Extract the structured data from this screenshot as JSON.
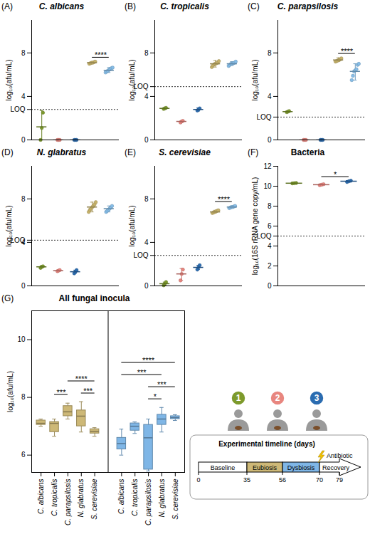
{
  "chart_data": [
    {
      "type": "scatter",
      "panel": "(A)",
      "title": "C. albicans",
      "ylabel": "log₁₀(afu/mL)",
      "ylim": [
        0,
        11
      ],
      "yticks": [
        0,
        4,
        8,
        {
          "value": 2.8,
          "label": "LOQ"
        }
      ],
      "loq": 2.8,
      "tick_labels": "y",
      "series": [
        {
          "color": "#7d9a2c",
          "values": [
            0,
            1.1,
            2.5
          ],
          "mean": 1.2,
          "error": [
            0,
            2.7
          ]
        },
        {
          "color": "#e8867f",
          "values": [
            0,
            0,
            0
          ],
          "mean": 0,
          "error": [
            0,
            0
          ]
        },
        {
          "color": "#2b6cb0",
          "values": [
            0,
            0,
            0
          ],
          "mean": 0,
          "error": [
            0,
            0
          ]
        },
        {
          "color": "#c7b36b",
          "values": [
            7.0,
            7.05,
            7.1,
            7.1,
            7.15,
            7.2
          ],
          "mean": 7.1,
          "error": [
            7.0,
            7.2
          ]
        },
        {
          "color": "#86bde8",
          "values": [
            6.2,
            6.3,
            6.35,
            6.45,
            6.5,
            6.6,
            6.65
          ],
          "mean": 6.4,
          "error": [
            6.2,
            6.65
          ]
        }
      ],
      "significance": [
        {
          "between": [
            3,
            4
          ],
          "label": "****"
        }
      ]
    },
    {
      "type": "scatter",
      "panel": "(B)",
      "title": "C. tropicalis",
      "ylabel": "log₁₀(afu/mL)",
      "ylim": [
        0,
        11
      ],
      "yticks": [
        0,
        4,
        8,
        {
          "value": 4.9,
          "label": "LOQ"
        }
      ],
      "loq": 4.9,
      "tick_labels": "y",
      "series": [
        {
          "color": "#7d9a2c",
          "values": [
            2.85,
            2.9,
            2.95
          ],
          "mean": 2.9,
          "error": [
            2.85,
            2.95
          ]
        },
        {
          "color": "#e8867f",
          "values": [
            1.6,
            1.7,
            1.75
          ],
          "mean": 1.7,
          "error": [
            1.6,
            1.75
          ]
        },
        {
          "color": "#2b6cb0",
          "values": [
            2.7,
            2.8,
            2.9
          ],
          "mean": 2.8,
          "error": [
            2.65,
            2.95
          ]
        },
        {
          "color": "#c7b36b",
          "values": [
            6.7,
            6.85,
            6.95,
            7.0,
            7.05,
            7.1,
            7.25
          ],
          "mean": 7.0,
          "error": [
            6.7,
            7.3
          ]
        },
        {
          "color": "#86bde8",
          "values": [
            6.8,
            6.9,
            7.0,
            7.0,
            7.05,
            7.1,
            7.2
          ],
          "mean": 7.0,
          "error": [
            6.85,
            7.2
          ]
        }
      ],
      "significance": []
    },
    {
      "type": "scatter",
      "panel": "(C)",
      "title": "C. parapsilosis",
      "ylabel": "log₁₀(afu/mL)",
      "ylim": [
        0,
        11
      ],
      "yticks": [
        0,
        4,
        8,
        {
          "value": 2.1,
          "label": "LOQ"
        }
      ],
      "loq": 2.1,
      "tick_labels": "y",
      "series": [
        {
          "color": "#7d9a2c",
          "values": [
            2.55,
            2.6,
            2.65
          ],
          "mean": 2.6,
          "error": [
            2.55,
            2.65
          ]
        },
        {
          "color": "#e8867f",
          "values": [
            0,
            0,
            0
          ],
          "mean": 0,
          "error": [
            0,
            0
          ]
        },
        {
          "color": "#2b6cb0",
          "values": [
            0,
            0,
            0
          ],
          "mean": 0,
          "error": [
            0,
            0
          ]
        },
        {
          "color": "#c7b36b",
          "values": [
            7.2,
            7.25,
            7.3,
            7.35,
            7.4,
            7.5
          ],
          "mean": 7.35,
          "error": [
            7.2,
            7.55
          ]
        },
        {
          "color": "#86bde8",
          "values": [
            5.5,
            5.9,
            6.3,
            6.4,
            6.5,
            6.9,
            7.0
          ],
          "mean": 6.3,
          "error": [
            5.5,
            7.0
          ]
        }
      ],
      "significance": [
        {
          "between": [
            3,
            4
          ],
          "label": "****"
        }
      ]
    },
    {
      "type": "scatter",
      "panel": "(D)",
      "title": "N. glabratus",
      "ylabel": "log₁₀(afu/mL)",
      "ylim": [
        0,
        11
      ],
      "yticks": [
        0,
        4,
        8,
        {
          "value": 4.2,
          "label": "LOQ"
        }
      ],
      "loq": 4.2,
      "tick_labels": "y",
      "series": [
        {
          "color": "#7d9a2c",
          "values": [
            1.65,
            1.75,
            1.8
          ],
          "mean": 1.75,
          "error": [
            1.65,
            1.85
          ]
        },
        {
          "color": "#e8867f",
          "values": [
            1.35,
            1.4,
            1.45
          ],
          "mean": 1.4,
          "error": [
            1.35,
            1.45
          ]
        },
        {
          "color": "#2b6cb0",
          "values": [
            1.15,
            1.3,
            1.45
          ],
          "mean": 1.3,
          "error": [
            1.15,
            1.45
          ]
        },
        {
          "color": "#c7b36b",
          "values": [
            6.8,
            7.0,
            7.1,
            7.25,
            7.35,
            7.5,
            7.7
          ],
          "mean": 7.25,
          "error": [
            6.8,
            7.7
          ]
        },
        {
          "color": "#86bde8",
          "values": [
            6.8,
            6.9,
            7.0,
            7.1,
            7.2,
            7.35
          ],
          "mean": 7.1,
          "error": [
            6.8,
            7.35
          ]
        }
      ],
      "significance": []
    },
    {
      "type": "scatter",
      "panel": "(E)",
      "title": "S. cerevisiae",
      "ylabel": "log₁₀(afu/mL)",
      "ylim": [
        0,
        11
      ],
      "yticks": [
        0,
        4,
        8,
        {
          "value": 2.8,
          "label": "LOQ"
        }
      ],
      "loq": 2.8,
      "tick_labels": "y",
      "series": [
        {
          "color": "#7d9a2c",
          "values": [
            0.05,
            0.2,
            0.35
          ],
          "mean": 0.2,
          "error": [
            0.05,
            0.35
          ]
        },
        {
          "color": "#e8867f",
          "values": [
            0.5,
            1.1,
            1.5
          ],
          "mean": 1.1,
          "error": [
            0.5,
            1.6
          ]
        },
        {
          "color": "#2b6cb0",
          "values": [
            1.5,
            1.7,
            1.9
          ],
          "mean": 1.7,
          "error": [
            1.5,
            1.9
          ]
        },
        {
          "color": "#c7b36b",
          "values": [
            6.7,
            6.75,
            6.8,
            6.85,
            6.9,
            6.95
          ],
          "mean": 6.8,
          "error": [
            6.7,
            6.95
          ]
        },
        {
          "color": "#86bde8",
          "values": [
            7.15,
            7.2,
            7.25,
            7.25,
            7.3,
            7.35
          ],
          "mean": 7.25,
          "error": [
            7.15,
            7.35
          ]
        }
      ],
      "significance": [
        {
          "between": [
            3,
            4
          ],
          "label": "****"
        }
      ]
    },
    {
      "type": "scatter",
      "panel": "(F)",
      "title": "Bacteria",
      "ylabel": "log₁₀(16S rRNA gene copy/mL)",
      "ylim": [
        0,
        12
      ],
      "yticks": [
        0,
        2,
        4,
        6,
        8,
        10,
        12,
        {
          "value": 5,
          "label": "LOQ"
        }
      ],
      "loq": 5,
      "tick_labels": "y",
      "series": [
        {
          "color": "#7d9a2c",
          "values": [
            10.28,
            10.3,
            10.32
          ],
          "mean": 10.3,
          "error": [
            10.27,
            10.33
          ]
        },
        {
          "color": "#e8867f",
          "values": [
            10.1,
            10.15,
            10.2
          ],
          "mean": 10.15,
          "error": [
            10.1,
            10.2
          ]
        },
        {
          "color": "#2b6cb0",
          "values": [
            10.42,
            10.5,
            10.55
          ],
          "mean": 10.5,
          "error": [
            10.42,
            10.56
          ]
        }
      ],
      "significance": [
        {
          "between": [
            1,
            2
          ],
          "label": "*"
        }
      ]
    },
    {
      "type": "box",
      "panel": "(G)",
      "title": "All fungal inocula",
      "ylabel": "log₁₀(afu/mL)",
      "ylim": [
        5.4,
        11
      ],
      "yticks": [
        6,
        8,
        10
      ],
      "categories": [
        "C. albicans",
        "C. tropicalis",
        "C. parapsilosis",
        "N. glabratus",
        "S. cerevisiae"
      ],
      "series": [
        {
          "color": "#cdb877",
          "boxes": [
            {
              "min": 7.0,
              "q1": 7.05,
              "median": 7.1,
              "q3": 7.2,
              "max": 7.25
            },
            {
              "min": 6.65,
              "q1": 6.8,
              "median": 7.1,
              "q3": 7.15,
              "max": 7.25
            },
            {
              "min": 7.25,
              "q1": 7.35,
              "median": 7.5,
              "q3": 7.7,
              "max": 7.8
            },
            {
              "min": 6.8,
              "q1": 7.0,
              "median": 7.35,
              "q3": 7.55,
              "max": 7.85
            },
            {
              "min": 6.65,
              "q1": 6.75,
              "median": 6.82,
              "q3": 6.9,
              "max": 6.95
            }
          ],
          "significance": [
            {
              "between": [
                1,
                2
              ],
              "label": "***"
            },
            {
              "between": [
                3,
                4
              ],
              "label": "***"
            },
            {
              "between": [
                2,
                4
              ],
              "label": "****"
            }
          ]
        },
        {
          "color": "#7fb6e6",
          "boxes": [
            {
              "min": 6.0,
              "q1": 6.2,
              "median": 6.4,
              "q3": 6.6,
              "max": 6.9
            },
            {
              "min": 6.75,
              "q1": 6.85,
              "median": 7.0,
              "q3": 7.1,
              "max": 7.15
            },
            {
              "min": 5.45,
              "q1": 5.5,
              "median": 6.6,
              "q3": 7.05,
              "max": 7.25
            },
            {
              "min": 6.8,
              "q1": 7.05,
              "median": 7.25,
              "q3": 7.4,
              "max": 7.65
            },
            {
              "min": 7.2,
              "q1": 7.25,
              "median": 7.3,
              "q3": 7.35,
              "max": 7.4
            }
          ],
          "significance": [
            {
              "between": [
                2,
                3
              ],
              "label": "*"
            },
            {
              "between": [
                2,
                4
              ],
              "label": "***"
            },
            {
              "between": [
                0,
                3
              ],
              "label": "***"
            },
            {
              "between": [
                0,
                4
              ],
              "label": "****"
            }
          ]
        }
      ]
    },
    {
      "type": "timeline",
      "title": "Experimental timeline (days)",
      "donors": [
        {
          "label": "1",
          "color": "#7d9a2c"
        },
        {
          "label": "2",
          "color": "#e8867f"
        },
        {
          "label": "3",
          "color": "#2b6cb0"
        }
      ],
      "phases": [
        {
          "label": "Baseline",
          "start": 0,
          "end": 35,
          "color": "#ffffff"
        },
        {
          "label": "Eubiosis",
          "start": 35,
          "end": 56,
          "color": "#cdb877"
        },
        {
          "label": "Dysbiosis",
          "start": 56,
          "end": 70,
          "color": "#7fb6e6"
        },
        {
          "label": "Recovery",
          "start": 70,
          "end": 79,
          "color": "#ffffff"
        }
      ],
      "ticks": [
        0,
        35,
        56,
        70,
        79
      ],
      "annotation": "Antibiotic"
    }
  ]
}
